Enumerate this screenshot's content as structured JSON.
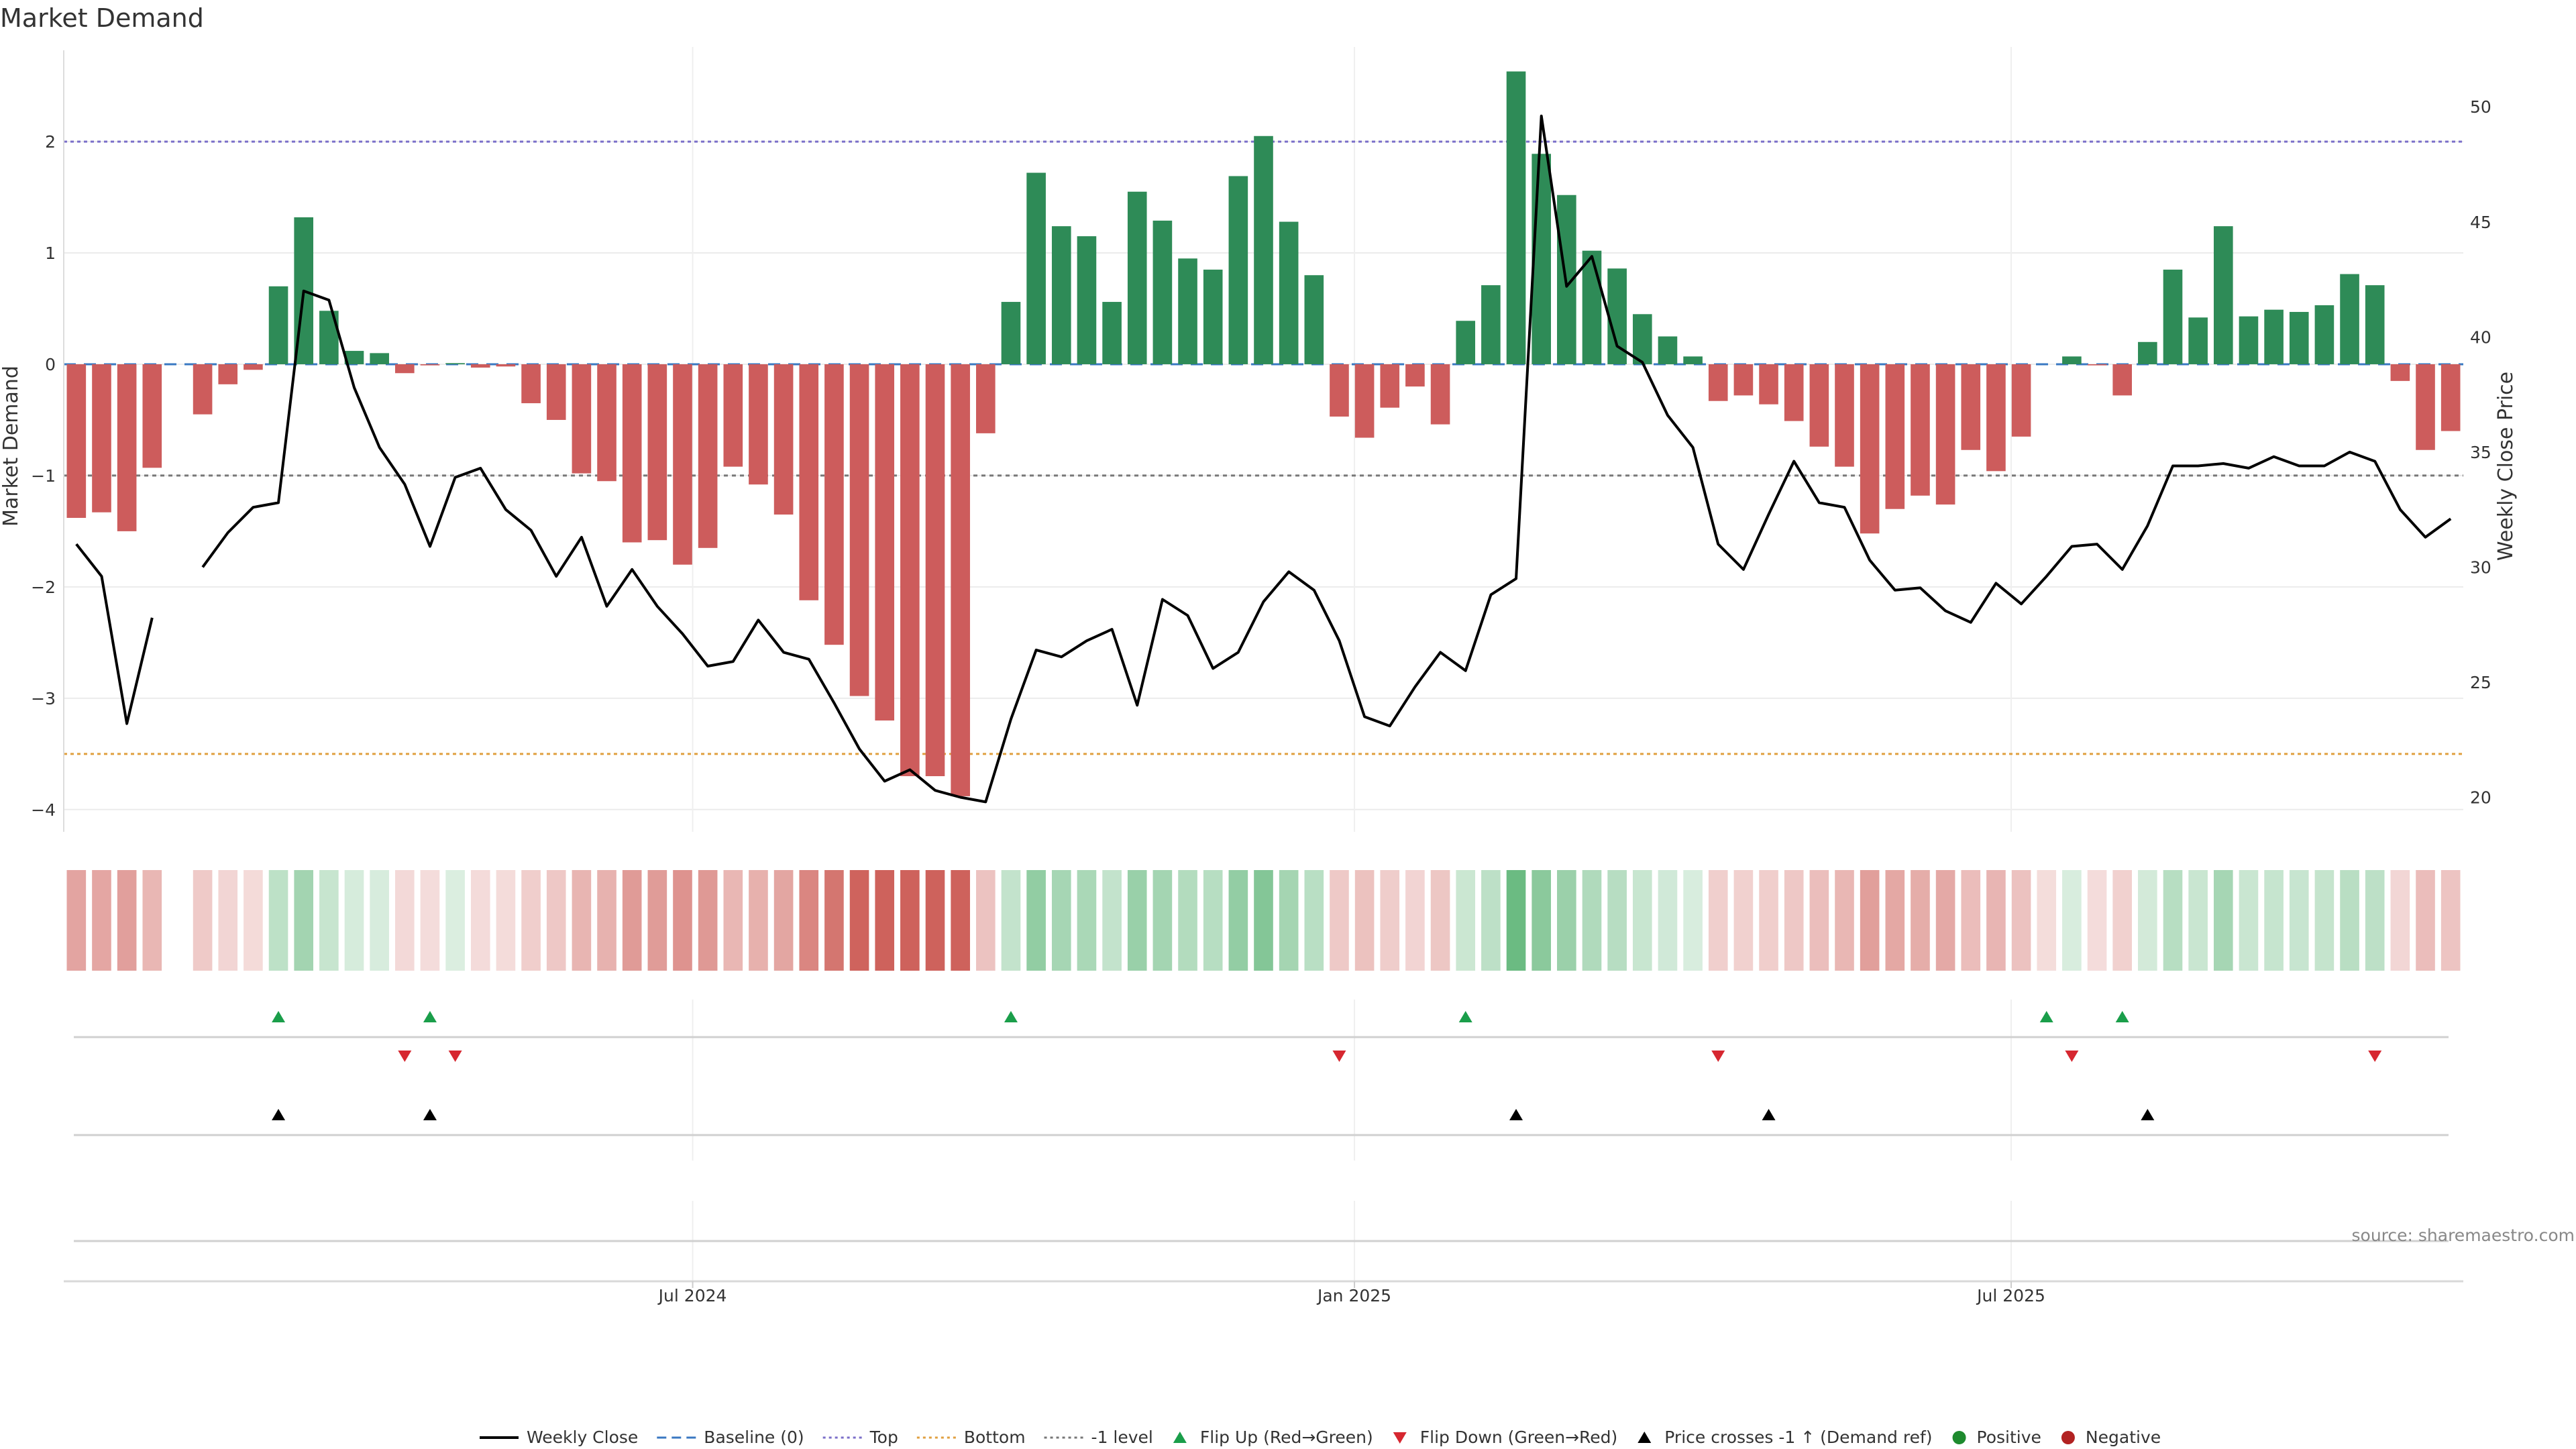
{
  "title": "Market Demand",
  "source": "source: sharemaestro.com",
  "colors": {
    "pos": "#2e8b57",
    "neg": "#cd5c5c",
    "line": "#000000",
    "top": "#7b6fc9",
    "bottom": "#e0a040",
    "minus1": "#777777",
    "baseline": "#3a78c2",
    "flip_up": "#1a9e4a",
    "flip_down": "#d62730",
    "cross": "#000000"
  },
  "chart_data": {
    "type": "bar",
    "title": "Market Demand",
    "ylabel": "Market Demand",
    "y2label": "Weekly Close Price",
    "ylim": [
      -4.2,
      2.85
    ],
    "y2lim": [
      18.5,
      52.6
    ],
    "yticks": [
      2,
      1,
      0,
      -1,
      -2,
      -3,
      -4
    ],
    "ytick_labels": [
      "2",
      "1",
      "0",
      "−1",
      "−2",
      "−3",
      "−4"
    ],
    "y2ticks": [
      50,
      45,
      40,
      35,
      30,
      25,
      20
    ],
    "y2tick_labels": [
      "50",
      "45",
      "40",
      "35",
      "30",
      "25",
      "20"
    ],
    "xticks": [
      {
        "label": "Jul 2024",
        "index": 24.4
      },
      {
        "label": "Jan 2025",
        "index": 50.6
      },
      {
        "label": "Jul 2025",
        "index": 76.6
      }
    ],
    "reference_lines": [
      {
        "name": "Top",
        "value": 2
      },
      {
        "name": "Bottom",
        "value": -3.5
      },
      {
        "name": "-1 level",
        "value": -1
      },
      {
        "name": "Baseline (0)",
        "value": 0
      }
    ],
    "demand": [
      -1.38,
      -1.33,
      -1.5,
      -0.93,
      null,
      -0.45,
      -0.18,
      -0.05,
      0.7,
      1.32,
      0.48,
      0.12,
      0.1,
      -0.08,
      -0.01,
      0.01,
      -0.03,
      -0.02,
      -0.35,
      -0.5,
      -0.98,
      -1.05,
      -1.6,
      -1.58,
      -1.8,
      -1.65,
      -0.92,
      -1.08,
      -1.35,
      -2.12,
      -2.52,
      -2.98,
      -3.2,
      -3.7,
      -3.7,
      -3.88,
      -0.62,
      0.56,
      1.72,
      1.24,
      1.15,
      0.56,
      1.55,
      1.29,
      0.95,
      0.85,
      1.69,
      2.05,
      1.28,
      0.8,
      -0.47,
      -0.66,
      -0.39,
      -0.2,
      -0.54,
      0.39,
      0.71,
      2.63,
      1.89,
      1.52,
      1.02,
      0.86,
      0.45,
      0.25,
      0.07,
      -0.33,
      -0.28,
      -0.36,
      -0.51,
      -0.74,
      -0.92,
      -1.52,
      -1.3,
      -1.18,
      -1.26,
      -0.77,
      -0.96,
      -0.65,
      0.0,
      0.07,
      -0.01,
      -0.28,
      0.2,
      0.85,
      0.42,
      1.24,
      0.43,
      0.49,
      0.47,
      0.53,
      0.81,
      0.71,
      -0.15,
      -0.77,
      -0.6
    ],
    "close": [
      31.0,
      29.6,
      23.2,
      27.8,
      null,
      30.0,
      31.5,
      32.6,
      32.8,
      42.0,
      41.6,
      37.8,
      35.2,
      33.6,
      30.9,
      33.9,
      34.3,
      32.5,
      31.6,
      29.6,
      31.3,
      28.3,
      29.9,
      28.3,
      27.1,
      25.7,
      25.9,
      27.7,
      26.3,
      26.0,
      24.1,
      22.1,
      20.7,
      21.2,
      20.3,
      20.0,
      19.8,
      23.4,
      26.4,
      26.1,
      26.8,
      27.3,
      24.0,
      28.6,
      27.9,
      25.6,
      26.3,
      28.5,
      29.8,
      29.0,
      26.8,
      23.5,
      23.1,
      24.8,
      26.3,
      25.5,
      28.8,
      29.5,
      49.6,
      42.2,
      43.5,
      39.6,
      38.9,
      36.6,
      35.2,
      31.0,
      29.9,
      32.3,
      34.6,
      32.8,
      32.6,
      30.3,
      29.0,
      29.1,
      28.1,
      27.6,
      29.3,
      28.4,
      29.6,
      30.9,
      31.0,
      29.9,
      31.8,
      34.4,
      34.4,
      34.5,
      34.3,
      34.8,
      34.4,
      34.4,
      35.0,
      34.6,
      32.5,
      31.3,
      32.1
    ],
    "flip_up": [
      8,
      14,
      37,
      55,
      78,
      81
    ],
    "flip_down": [
      13,
      15,
      50,
      65,
      79,
      91
    ],
    "price_crosses": [
      8,
      14,
      57,
      67,
      82
    ],
    "legend": [
      {
        "label": "Weekly Close",
        "symbol": "line",
        "color": "#000000"
      },
      {
        "label": "Baseline (0)",
        "symbol": "dash",
        "color": "#3a78c2"
      },
      {
        "label": "Top",
        "symbol": "dot",
        "color": "#7b6fc9"
      },
      {
        "label": "Bottom",
        "symbol": "dot",
        "color": "#e0a040"
      },
      {
        "label": "-1 level",
        "symbol": "dot",
        "color": "#777777"
      },
      {
        "label": "Flip Up (Red→Green)",
        "symbol": "tri-up",
        "color": "#1a9e4a"
      },
      {
        "label": "Flip Down (Green→Red)",
        "symbol": "tri-down",
        "color": "#d62730"
      },
      {
        "label": "Price crosses -1 ↑ (Demand ref)",
        "symbol": "tri-up",
        "color": "#000000"
      },
      {
        "label": "Positive",
        "symbol": "circle",
        "color": "#1e8a2e"
      },
      {
        "label": "Negative",
        "symbol": "circle",
        "color": "#b22222"
      }
    ]
  }
}
